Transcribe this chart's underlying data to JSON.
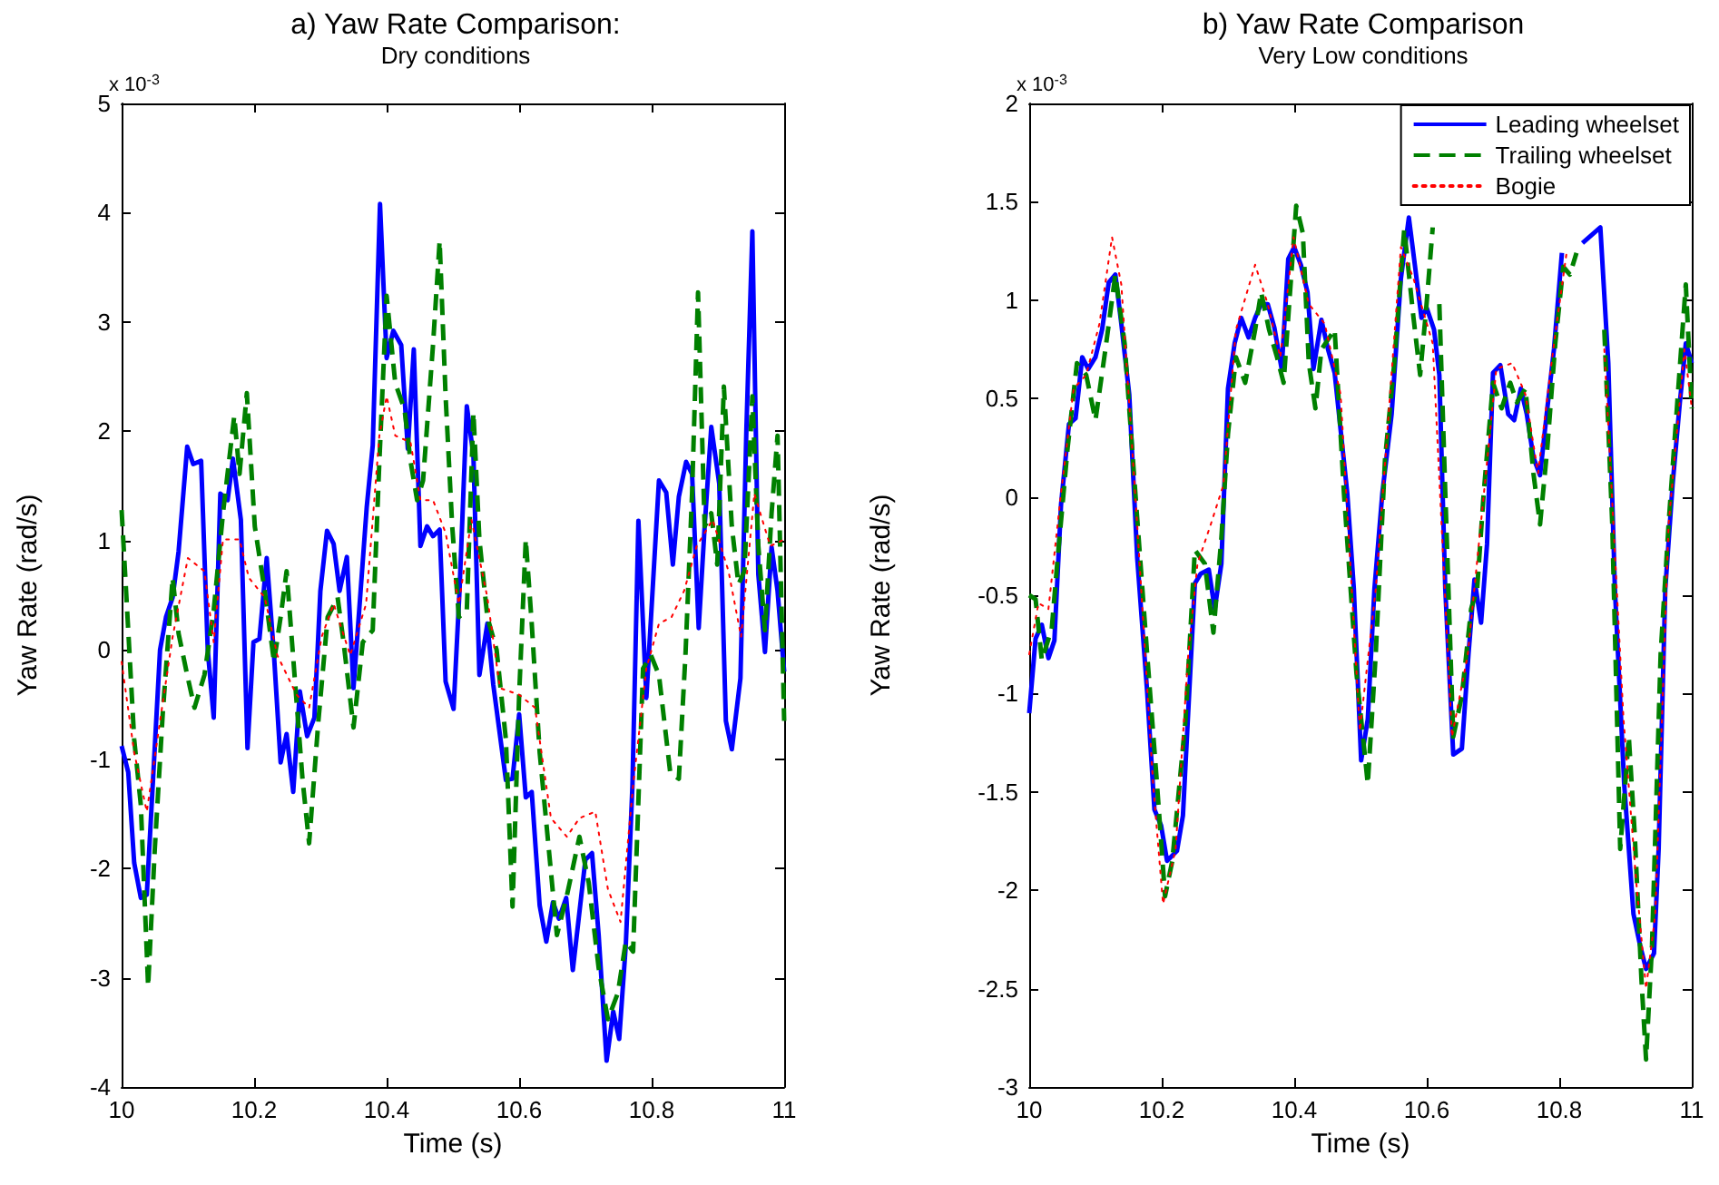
{
  "chart_data": [
    {
      "type": "line",
      "title": "a) Yaw Rate Comparison:",
      "subtitle": "Dry conditions",
      "xlabel": "Time (s)",
      "ylabel": "Yaw Rate (rad/s)",
      "annotations": [
        "x 10$^{-3}$"
      ],
      "xlim": [
        10,
        11
      ],
      "xticks": [
        10,
        10.2,
        10.4,
        10.6,
        10.8,
        11
      ],
      "ylim": [
        -4,
        5
      ],
      "yticks": [
        -4,
        -3,
        -2,
        -1,
        0,
        1,
        2,
        3,
        4,
        5
      ],
      "series": [
        {
          "color": "#0000ff",
          "line_style": "solid",
          "x": [
            10.0,
            10.01,
            10.019,
            10.029,
            10.038,
            10.058,
            10.067,
            10.077,
            10.086,
            10.099,
            10.108,
            10.12,
            10.13,
            10.139,
            10.149,
            10.16,
            10.168,
            10.18,
            10.19,
            10.199,
            10.208,
            10.219,
            10.23,
            10.24,
            10.249,
            10.259,
            10.269,
            10.28,
            10.291,
            10.3,
            10.31,
            10.32,
            10.329,
            10.34,
            10.35,
            10.37,
            10.379,
            10.39,
            10.4,
            10.41,
            10.422,
            10.432,
            10.441,
            10.451,
            10.461,
            10.47,
            10.48,
            10.489,
            10.501,
            10.51,
            10.521,
            10.531,
            10.54,
            10.552,
            10.561,
            10.58,
            10.59,
            10.6,
            10.61,
            10.619,
            10.631,
            10.641,
            10.651,
            10.66,
            10.671,
            10.681,
            10.7,
            10.71,
            10.72,
            10.732,
            10.742,
            10.751,
            10.761,
            10.771,
            10.78,
            10.792,
            10.811,
            10.822,
            10.832,
            10.841,
            10.852,
            10.861,
            10.871,
            10.88,
            10.89,
            10.902,
            10.912,
            10.921,
            10.934,
            10.943,
            10.952,
            10.961,
            10.971,
            10.981,
            10.99,
            11.0
          ],
          "values": [
            -0.88,
            -1.12,
            -1.95,
            -2.27,
            -2.24,
            0,
            0.3,
            0.48,
            0.9,
            1.86,
            1.7,
            1.73,
            0,
            -0.62,
            1.43,
            1.37,
            1.75,
            1.19,
            -0.9,
            0.07,
            0.1,
            0.84,
            -0.05,
            -1.03,
            -0.77,
            -1.3,
            -0.38,
            -0.79,
            -0.62,
            0.54,
            1.09,
            0.97,
            0.54,
            0.85,
            -0.35,
            1.31,
            1.87,
            4.08,
            2.67,
            2.92,
            2.79,
            1.84,
            2.75,
            0.95,
            1.13,
            1.04,
            1.1,
            -0.29,
            -0.54,
            0.54,
            2.23,
            1.78,
            -0.23,
            0.24,
            -0.32,
            -1.19,
            -1.18,
            -0.59,
            -1.35,
            -1.3,
            -2.34,
            -2.67,
            -2.31,
            -2.46,
            -2.27,
            -2.93,
            -1.92,
            -1.86,
            -2.61,
            -3.76,
            -3.31,
            -3.56,
            -2.7,
            -1.24,
            1.18,
            -0.44,
            1.55,
            1.44,
            0.78,
            1.4,
            1.72,
            1.61,
            0.2,
            1.13,
            2.04,
            1.52,
            -0.65,
            -0.91,
            -0.26,
            2.02,
            3.83,
            0.69,
            -0.02,
            0.94,
            0.54,
            -0.2
          ]
        },
        {
          "color": "#008000",
          "line_style": "dashed",
          "x": [
            10.0,
            10.01,
            10.019,
            10.029,
            10.04,
            10.05,
            10.062,
            10.077,
            10.086,
            10.099,
            10.11,
            10.125,
            10.139,
            10.153,
            10.17,
            10.178,
            10.189,
            10.201,
            10.216,
            10.23,
            10.24,
            10.249,
            10.264,
            10.273,
            10.283,
            10.297,
            10.311,
            10.326,
            10.335,
            10.35,
            10.364,
            10.379,
            10.389,
            10.4,
            10.413,
            10.427,
            10.436,
            10.446,
            10.455,
            10.47,
            10.48,
            10.489,
            10.499,
            10.509,
            10.521,
            10.531,
            10.54,
            10.552,
            10.566,
            10.58,
            10.59,
            10.6,
            10.61,
            10.619,
            10.631,
            10.643,
            10.657,
            10.672,
            10.691,
            10.705,
            10.72,
            10.734,
            10.749,
            10.761,
            10.772,
            10.787,
            10.799,
            10.811,
            10.828,
            10.841,
            10.851,
            10.861,
            10.87,
            10.88,
            10.89,
            10.899,
            10.909,
            10.921,
            10.931,
            10.94,
            10.952,
            10.961,
            10.971,
            10.981,
            10.99,
            11.0
          ],
          "values": [
            1.28,
            0.18,
            -0.82,
            -1.42,
            -3.08,
            -1.83,
            -0.59,
            0.66,
            0.15,
            -0.23,
            -0.53,
            -0.23,
            0.36,
            1.25,
            2.14,
            1.61,
            2.35,
            1.13,
            0.54,
            -0.11,
            0.3,
            0.72,
            -0.47,
            -1.18,
            -1.77,
            -0.65,
            0.3,
            0.48,
            0.07,
            -0.71,
            0.07,
            0.18,
            1.72,
            3.24,
            2.44,
            2.2,
            1.73,
            1.37,
            1.55,
            2.79,
            3.74,
            2.32,
            1.13,
            0.3,
            0.36,
            2.17,
            1.01,
            0.3,
            0,
            -0.82,
            -2.35,
            -0.41,
            1.01,
            0.24,
            -0.94,
            -1.71,
            -2.61,
            -2.25,
            -1.71,
            -2.13,
            -2.91,
            -3.38,
            -3.14,
            -2.67,
            -2.76,
            -0.17,
            -0.05,
            -0.23,
            -1.12,
            -1.18,
            -0.05,
            1.43,
            3.27,
            1.13,
            1.25,
            0.78,
            2.41,
            1.13,
            0.6,
            0.72,
            2.32,
            0.95,
            0.18,
            1.25,
            1.96,
            -0.65
          ]
        },
        {
          "color": "#ff0000",
          "line_style": "dotted",
          "x": [
            10.0,
            10.019,
            10.038,
            10.058,
            10.077,
            10.1,
            10.125,
            10.139,
            10.153,
            10.178,
            10.192,
            10.216,
            10.235,
            10.264,
            10.283,
            10.302,
            10.32,
            10.345,
            10.369,
            10.389,
            10.4,
            10.413,
            10.436,
            10.451,
            10.47,
            10.489,
            10.509,
            10.528,
            10.552,
            10.571,
            10.6,
            10.624,
            10.648,
            10.672,
            10.691,
            10.715,
            10.734,
            10.753,
            10.772,
            10.792,
            10.811,
            10.83,
            10.849,
            10.868,
            10.892,
            10.916,
            10.935,
            10.955,
            10.979,
            11.0
          ],
          "values": [
            -0.11,
            -0.94,
            -1.48,
            -0.65,
            0.12,
            0.84,
            0.72,
            0.07,
            1.01,
            1.01,
            0.66,
            0.48,
            -0.05,
            -0.41,
            -0.53,
            0.12,
            0.42,
            -0.05,
            0.42,
            1.96,
            2.32,
            1.96,
            1.9,
            1.37,
            1.37,
            1.07,
            0.42,
            1.19,
            0.48,
            -0.35,
            -0.41,
            -0.53,
            -1.54,
            -1.71,
            -1.54,
            -1.48,
            -2.19,
            -2.49,
            -1.24,
            -0.17,
            0.24,
            0.3,
            0.54,
            0.95,
            1.19,
            0.72,
            0.12,
            1.43,
            0.95,
            1.01
          ]
        }
      ]
    },
    {
      "type": "line",
      "title": "b) Yaw Rate Comparison",
      "subtitle": "Very Low conditions",
      "xlabel": "Time (s)",
      "ylabel": "Yaw Rate (rad/s)",
      "annotations": [
        "x 10$^{-3}$"
      ],
      "xlim": [
        10,
        11
      ],
      "xticks": [
        10,
        10.2,
        10.4,
        10.6,
        10.8,
        11
      ],
      "ylim": [
        -3,
        2
      ],
      "yticks": [
        -3,
        -2.5,
        -2,
        -1.5,
        -1,
        -0.5,
        0,
        0.5,
        1,
        1.5,
        2
      ],
      "legend": "top right",
      "series": [
        {
          "name": "Leading wheelset",
          "color": "#0000ff",
          "line_style": "solid",
          "x": [
            10.0,
            10.0096,
            10.019,
            10.029,
            10.038,
            10.048,
            10.06,
            10.07,
            10.08,
            10.089,
            10.1,
            10.11,
            10.12,
            10.13,
            10.139,
            10.151,
            10.163,
            10.178,
            10.189,
            10.199,
            10.208,
            10.223,
            10.232,
            10.242,
            10.25,
            10.259,
            10.271,
            10.28,
            10.29,
            10.3,
            10.31,
            10.32,
            10.331,
            10.341,
            10.35,
            10.36,
            10.37,
            10.381,
            10.391,
            10.4,
            10.41,
            10.42,
            10.429,
            10.441,
            10.451,
            10.461,
            10.48,
            10.49,
            10.501,
            10.511,
            10.521,
            10.533,
            10.547,
            10.561,
            10.573,
            10.582,
            10.592,
            10.6,
            10.611,
            10.619,
            10.628,
            10.64,
            10.653,
            10.663,
            10.672,
            10.682,
            10.691,
            10.7,
            10.711,
            10.723,
            10.732,
            10.742,
            10.751,
            10.761,
            10.771,
            10.782,
            10.792,
            10.804,
            10.816,
            10.826,
            10.835,
            10.862,
            10.874,
            10.884,
            10.898,
            10.912,
            10.922,
            10.931,
            10.943,
            10.95,
            10.96,
            10.971,
            10.982,
            10.991,
            11.0
          ],
          "values": [
            -1.1,
            -0.72,
            -0.65,
            -0.82,
            -0.73,
            -0.04,
            0.37,
            0.4,
            0.71,
            0.65,
            0.71,
            0.85,
            1.09,
            1.13,
            0.88,
            0.52,
            -0.31,
            -0.99,
            -1.59,
            -1.67,
            -1.85,
            -1.8,
            -1.62,
            -0.96,
            -0.44,
            -0.39,
            -0.37,
            -0.57,
            -0.34,
            0.55,
            0.78,
            0.91,
            0.81,
            0.91,
            0.98,
            0.98,
            0.86,
            0.65,
            1.21,
            1.27,
            1.18,
            1.04,
            0.65,
            0.9,
            0.75,
            0.63,
            0.02,
            -0.47,
            -1.34,
            -1.13,
            -0.47,
            0.02,
            0.42,
            1.11,
            1.42,
            1.18,
            0.91,
            0.96,
            0.85,
            0.62,
            -0.47,
            -1.31,
            -1.28,
            -0.8,
            -0.42,
            -0.64,
            -0.24,
            0.63,
            0.67,
            0.42,
            0.39,
            0.55,
            0.42,
            0.2,
            0.11,
            0.45,
            0.75,
            1.24,
            null,
            null,
            1.29,
            1.37,
            0.68,
            -0.47,
            -1.46,
            -2.12,
            -2.28,
            -2.4,
            -2.32,
            -1.79,
            -0.47,
            0.06,
            0.48,
            0.78,
            0.68
          ]
        },
        {
          "name": "Trailing wheelset",
          "color": "#008000",
          "line_style": "dashed",
          "x": [
            10.0,
            10.0096,
            10.019,
            10.034,
            10.043,
            10.058,
            10.072,
            10.086,
            10.1,
            10.115,
            10.13,
            10.144,
            10.158,
            10.178,
            10.192,
            10.205,
            10.216,
            10.236,
            10.25,
            10.265,
            10.278,
            10.29,
            10.3,
            10.312,
            10.326,
            10.341,
            10.35,
            10.362,
            10.374,
            10.384,
            10.393,
            10.403,
            10.413,
            10.422,
            10.432,
            10.441,
            10.461,
            10.475,
            10.494,
            10.511,
            10.523,
            10.537,
            10.551,
            10.566,
            10.58,
            10.59,
            10.599,
            10.609,
            10.614,
            10.619,
            10.628,
            10.64,
            10.653,
            10.667,
            10.676,
            10.686,
            10.7,
            10.713,
            10.726,
            10.736,
            10.749,
            10.761,
            10.771,
            10.782,
            10.794,
            10.806,
            10.816,
            10.826,
            10.845,
            10.868,
            10.88,
            10.892,
            10.905,
            10.914,
            10.924,
            10.931,
            10.94,
            10.953,
            10.965,
            10.979,
            10.991,
            11.0
          ],
          "values": [
            -0.5,
            -0.52,
            -0.83,
            -0.67,
            -0.31,
            0.25,
            0.68,
            0.62,
            0.39,
            0.75,
            1.13,
            0.78,
            0.12,
            -0.8,
            -1.42,
            -2.03,
            -1.85,
            -1.13,
            -0.27,
            -0.34,
            -0.69,
            -0.21,
            0.32,
            0.71,
            0.58,
            0.85,
            1.04,
            0.85,
            0.71,
            0.58,
            1.01,
            1.48,
            1.34,
            0.68,
            0.45,
            0.75,
            0.85,
            0.02,
            -0.9,
            -1.46,
            -0.8,
            0.19,
            0.68,
            1.36,
            0.91,
            0.62,
            0.95,
            1.37,
            null,
            0.98,
            0.02,
            -1.22,
            -1.01,
            -0.57,
            -0.47,
            0.02,
            0.58,
            0.45,
            0.58,
            0.48,
            0.55,
            0.12,
            -0.14,
            0.25,
            0.78,
            1.17,
            1.13,
            1.24,
            null,
            0.85,
            -0.14,
            -1.79,
            -1.22,
            -1.72,
            -2.45,
            -2.86,
            -2.28,
            -0.8,
            -0.14,
            0.52,
            1.08,
            0.45
          ]
        },
        {
          "name": "Bogie",
          "color": "#ff0000",
          "line_style": "dotted",
          "x": [
            10.0,
            10.014,
            10.029,
            10.048,
            10.067,
            10.086,
            10.106,
            10.125,
            10.139,
            10.163,
            10.187,
            10.202,
            10.221,
            10.24,
            10.254,
            10.274,
            10.293,
            10.312,
            10.341,
            10.36,
            10.379,
            10.399,
            10.422,
            10.446,
            10.47,
            10.499,
            10.523,
            10.561,
            10.58,
            10.609,
            10.638,
            10.662,
            10.705,
            10.729,
            10.749,
            10.768,
            10.792,
            10.811,
            10.84,
            10.868,
            10.897,
            10.916,
            10.931,
            10.945,
            10.965,
            10.989,
            11.0
          ],
          "values": [
            -0.8,
            -0.54,
            -0.57,
            0.02,
            0.55,
            0.62,
            0.88,
            1.32,
            1.08,
            -0.14,
            -1.46,
            -2.07,
            -1.79,
            -0.8,
            -0.34,
            -0.14,
            0.06,
            0.85,
            1.18,
            0.98,
            0.71,
            1.32,
            0.98,
            0.88,
            0.52,
            -1.19,
            -0.47,
            1.27,
            1.11,
            0.78,
            -1.22,
            -0.8,
            0.65,
            0.68,
            0.52,
            0.12,
            0.78,
            1.24,
            null,
            0.75,
            -1.13,
            -1.95,
            -2.5,
            -2.12,
            -0.14,
            0.75,
            0.45
          ]
        }
      ]
    }
  ]
}
